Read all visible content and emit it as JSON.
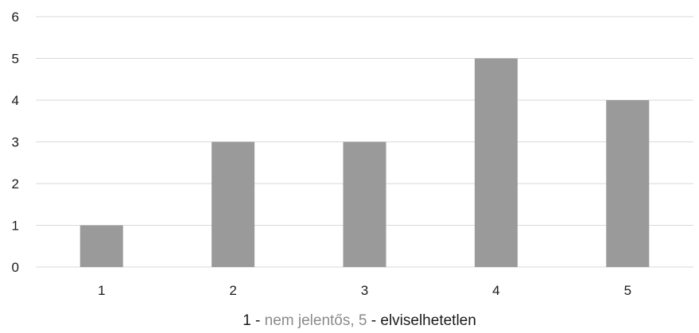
{
  "chart_data": {
    "type": "bar",
    "title": "",
    "ylabel": "",
    "xlabel_parts": [
      "1 - ",
      "nem jelentős, 5",
      " - elviselhetetlen"
    ],
    "categories": [
      "1",
      "2",
      "3",
      "4",
      "5"
    ],
    "values": [
      1,
      3,
      3,
      5,
      4
    ],
    "ylim": [
      0,
      6
    ],
    "yticks": [
      "0",
      "1",
      "2",
      "3",
      "4",
      "5",
      "6"
    ],
    "grid": true,
    "legend": "none",
    "bar_color": "#9a9a9a",
    "grid_color": "#d9d9d9"
  }
}
